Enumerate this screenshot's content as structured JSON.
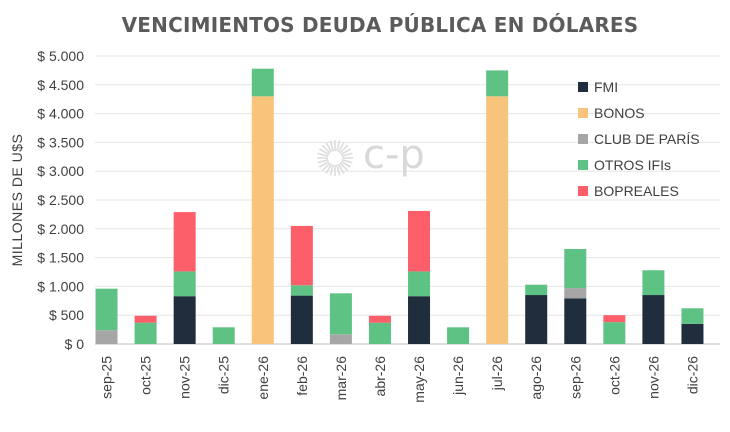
{
  "chart_data": {
    "type": "bar",
    "stacked": true,
    "title": "VENCIMIENTOS DEUDA PÚBLICA EN DÓLARES",
    "ylabel": "MILLONES DE U$S",
    "xlabel": "",
    "ylim": [
      0,
      5000
    ],
    "yticks": [
      0,
      500,
      1000,
      1500,
      2000,
      2500,
      3000,
      3500,
      4000,
      4500,
      5000
    ],
    "ytick_labels": [
      "$ 0",
      "$ 500",
      "$ 1.000",
      "$ 1.500",
      "$ 2.000",
      "$ 2.500",
      "$ 3.000",
      "$ 3.500",
      "$ 4.000",
      "$ 4.500",
      "$ 5.000"
    ],
    "grid": true,
    "legend_position": "right",
    "categories": [
      "sep-25",
      "oct-25",
      "nov-25",
      "dic-25",
      "ene-26",
      "feb-26",
      "mar-26",
      "abr-26",
      "may-26",
      "jun-26",
      "jul-26",
      "ago-26",
      "sep-26",
      "oct-26",
      "nov-26",
      "dic-26"
    ],
    "series": [
      {
        "name": "FMI",
        "color": "#1f2d3d",
        "values": [
          0,
          0,
          830,
          0,
          0,
          840,
          0,
          0,
          830,
          0,
          0,
          850,
          790,
          0,
          850,
          350
        ]
      },
      {
        "name": "BONOS",
        "color": "#f8c37a",
        "values": [
          0,
          0,
          0,
          0,
          4300,
          0,
          0,
          0,
          0,
          0,
          4300,
          0,
          0,
          0,
          0,
          0
        ]
      },
      {
        "name": "CLUB DE PARÍS",
        "color": "#a6a6a6",
        "values": [
          240,
          0,
          0,
          0,
          0,
          0,
          170,
          0,
          0,
          0,
          0,
          0,
          180,
          0,
          0,
          0
        ]
      },
      {
        "name": "OTROS IFIs",
        "color": "#5ec285",
        "values": [
          720,
          370,
          430,
          290,
          480,
          180,
          710,
          370,
          430,
          290,
          450,
          180,
          680,
          380,
          430,
          270
        ]
      },
      {
        "name": "BOPREALES",
        "color": "#fc5e6a",
        "values": [
          0,
          120,
          1030,
          0,
          0,
          1030,
          0,
          120,
          1050,
          0,
          0,
          0,
          0,
          120,
          0,
          0
        ]
      }
    ],
    "watermark": "c-p"
  }
}
